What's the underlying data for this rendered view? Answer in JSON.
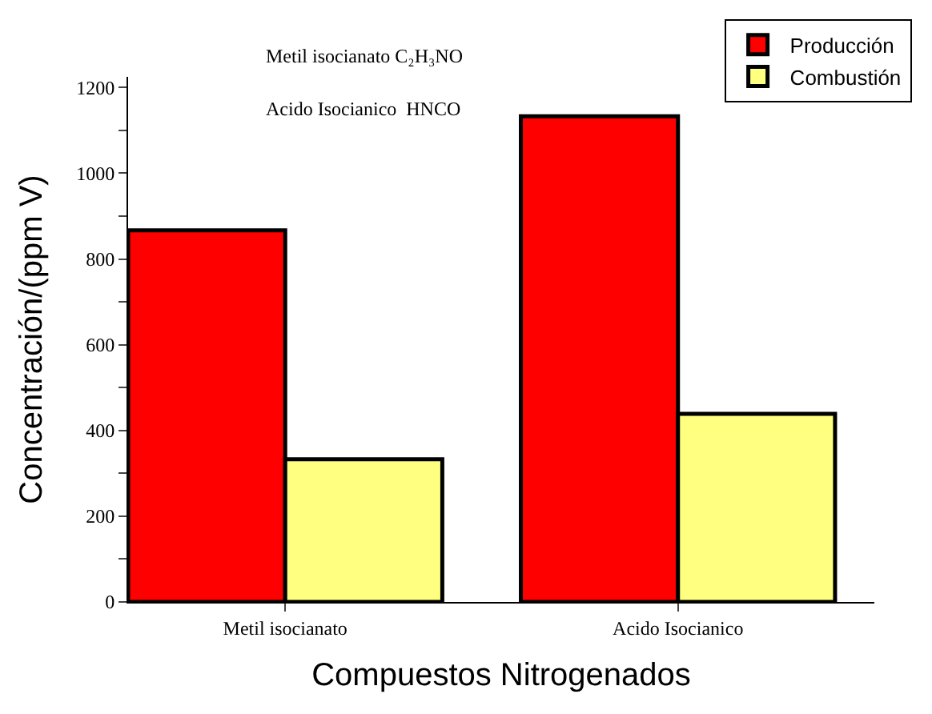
{
  "chart_data": {
    "type": "bar",
    "xlabel": "Compuestos Nitrogenados",
    "ylabel": "Concentración/(ppm V)",
    "categories": [
      "Metil isocianato",
      "Acido Isocianico"
    ],
    "series": [
      {
        "name": "Producción",
        "color": "#ff0000",
        "values": [
          867,
          1133
        ]
      },
      {
        "name": "Combustión",
        "color": "#ffff80",
        "values": [
          333,
          439
        ]
      }
    ],
    "ylim": [
      0,
      1225
    ],
    "yticks": [
      0,
      {
        "value": 100,
        "label": null
      },
      200,
      {
        "value": 300,
        "label": null
      },
      400,
      {
        "value": 500,
        "label": null
      },
      600,
      {
        "value": 700,
        "label": null
      },
      800,
      {
        "value": 900,
        "label": null
      },
      1000,
      {
        "value": 1100,
        "label": null
      },
      1200
    ],
    "annotations": [
      "Metil isocianato C₂H₃NO",
      "Acido Isocianico  HNCO"
    ],
    "legend": "top right"
  }
}
